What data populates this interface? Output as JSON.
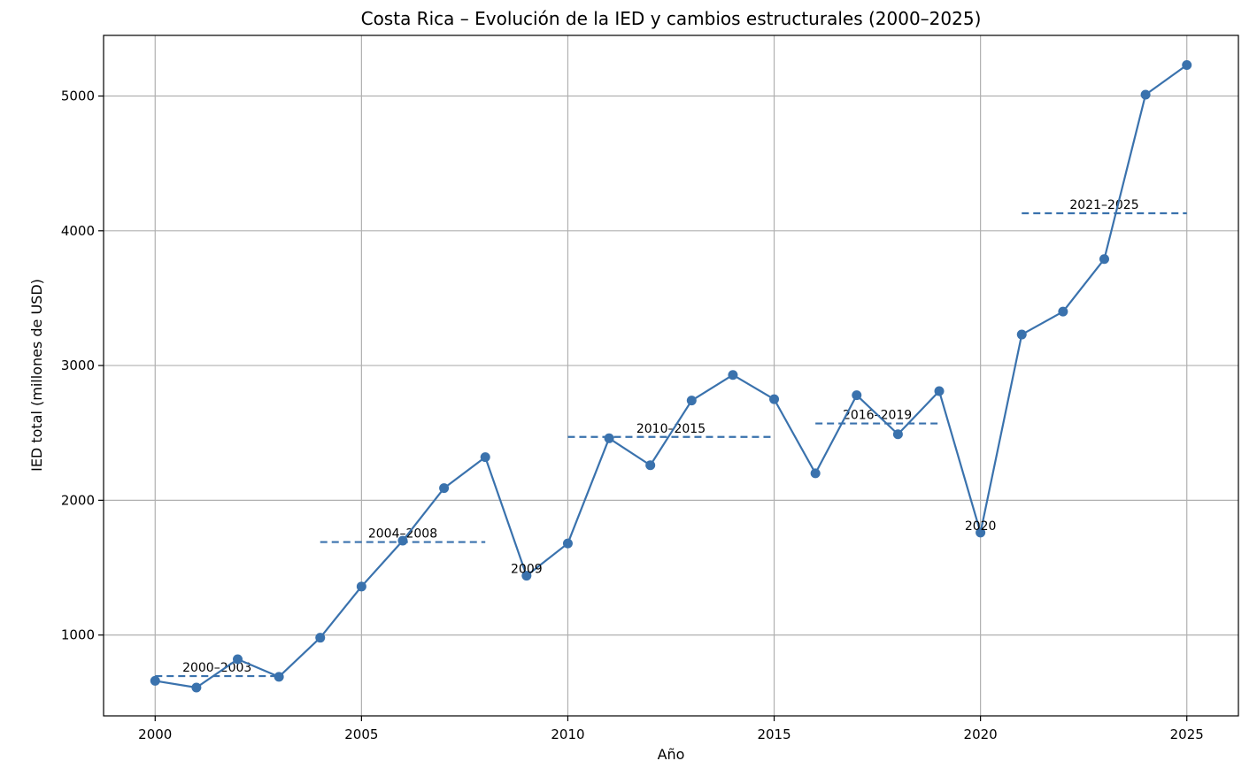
{
  "chart_data": {
    "type": "line",
    "title": "Costa Rica – Evolución de la IED y cambios estructurales (2000–2025)",
    "xlabel": "Año",
    "ylabel": "IED total (millones de USD)",
    "xlim": [
      1998.75,
      2026.25
    ],
    "ylim": [
      400,
      5450
    ],
    "xticks": [
      2000,
      2005,
      2010,
      2015,
      2020,
      2025
    ],
    "yticks": [
      1000,
      2000,
      3000,
      4000,
      5000
    ],
    "grid": true,
    "colors": {
      "line": "#3a72ad",
      "period": "#3a72ad"
    },
    "series": [
      {
        "x": [
          2000,
          2001,
          2002,
          2003,
          2004,
          2005,
          2006,
          2007,
          2008,
          2009,
          2010,
          2011,
          2012,
          2013,
          2014,
          2015,
          2016,
          2017,
          2018,
          2019,
          2020,
          2021,
          2022,
          2023,
          2024,
          2025
        ],
        "values": [
          660,
          610,
          820,
          690,
          980,
          1360,
          1700,
          2090,
          2320,
          1440,
          1680,
          2460,
          2260,
          2740,
          2930,
          2750,
          2200,
          2780,
          2490,
          2810,
          1760,
          3230,
          3400,
          3790,
          5010,
          5230
        ]
      }
    ],
    "periods": [
      {
        "label": "2000–2003",
        "x_start": 2000,
        "x_end": 2003,
        "mean": 695
      },
      {
        "label": "2004–2008",
        "x_start": 2004,
        "x_end": 2008,
        "mean": 1690
      },
      {
        "label": "2010–2015",
        "x_start": 2010,
        "x_end": 2015,
        "mean": 2470
      },
      {
        "label": "2016–2019",
        "x_start": 2016,
        "x_end": 2019,
        "mean": 2570
      },
      {
        "label": "2021–2025",
        "x_start": 2021,
        "x_end": 2025,
        "mean": 4130
      }
    ],
    "annotations": [
      {
        "label": "2009",
        "x": 2009,
        "y": 1440
      },
      {
        "label": "2020",
        "x": 2020,
        "y": 1760
      }
    ]
  }
}
